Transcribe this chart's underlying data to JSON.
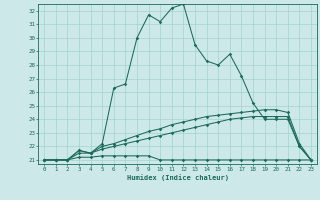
{
  "title": "",
  "xlabel": "Humidex (Indice chaleur)",
  "bg_color": "#cce8e8",
  "grid_color": "#99cccc",
  "line_color": "#1a6b5a",
  "text_color": "#1a6b5a",
  "xlim": [
    -0.5,
    23.5
  ],
  "ylim": [
    20.7,
    32.5
  ],
  "xticks": [
    0,
    1,
    2,
    3,
    4,
    5,
    6,
    7,
    8,
    9,
    10,
    11,
    12,
    13,
    14,
    15,
    16,
    17,
    18,
    19,
    20,
    21,
    22,
    23
  ],
  "yticks": [
    21,
    22,
    23,
    24,
    25,
    26,
    27,
    28,
    29,
    30,
    31,
    32
  ],
  "line1_x": [
    0,
    1,
    2,
    3,
    4,
    5,
    6,
    7,
    8,
    9,
    10,
    11,
    12,
    13,
    14,
    15,
    16,
    17,
    18,
    19,
    20,
    21,
    22,
    23
  ],
  "line1_y": [
    21.0,
    21.0,
    21.0,
    21.7,
    21.5,
    22.2,
    26.3,
    26.6,
    30.0,
    31.7,
    31.2,
    32.2,
    32.5,
    29.5,
    28.3,
    28.0,
    28.8,
    27.2,
    25.2,
    24.0,
    24.0,
    24.0,
    22.0,
    21.0
  ],
  "line2_x": [
    0,
    1,
    2,
    3,
    4,
    5,
    6,
    7,
    8,
    9,
    10,
    11,
    12,
    13,
    14,
    15,
    16,
    17,
    18,
    19,
    20,
    21,
    22,
    23
  ],
  "line2_y": [
    21.0,
    21.0,
    21.0,
    21.7,
    21.5,
    22.0,
    22.2,
    22.5,
    22.8,
    23.1,
    23.3,
    23.6,
    23.8,
    24.0,
    24.2,
    24.3,
    24.4,
    24.5,
    24.6,
    24.7,
    24.7,
    24.5,
    22.2,
    21.0
  ],
  "line3_x": [
    0,
    1,
    2,
    3,
    4,
    5,
    6,
    7,
    8,
    9,
    10,
    11,
    12,
    13,
    14,
    15,
    16,
    17,
    18,
    19,
    20,
    21,
    22,
    23
  ],
  "line3_y": [
    21.0,
    21.0,
    21.0,
    21.2,
    21.2,
    21.3,
    21.3,
    21.3,
    21.3,
    21.3,
    21.0,
    21.0,
    21.0,
    21.0,
    21.0,
    21.0,
    21.0,
    21.0,
    21.0,
    21.0,
    21.0,
    21.0,
    21.0,
    21.0
  ],
  "line4_x": [
    0,
    1,
    2,
    3,
    4,
    5,
    6,
    7,
    8,
    9,
    10,
    11,
    12,
    13,
    14,
    15,
    16,
    17,
    18,
    19,
    20,
    21,
    22,
    23
  ],
  "line4_y": [
    21.0,
    21.0,
    21.0,
    21.5,
    21.5,
    21.8,
    22.0,
    22.2,
    22.4,
    22.6,
    22.8,
    23.0,
    23.2,
    23.4,
    23.6,
    23.8,
    24.0,
    24.1,
    24.2,
    24.2,
    24.2,
    24.2,
    22.0,
    21.0
  ]
}
